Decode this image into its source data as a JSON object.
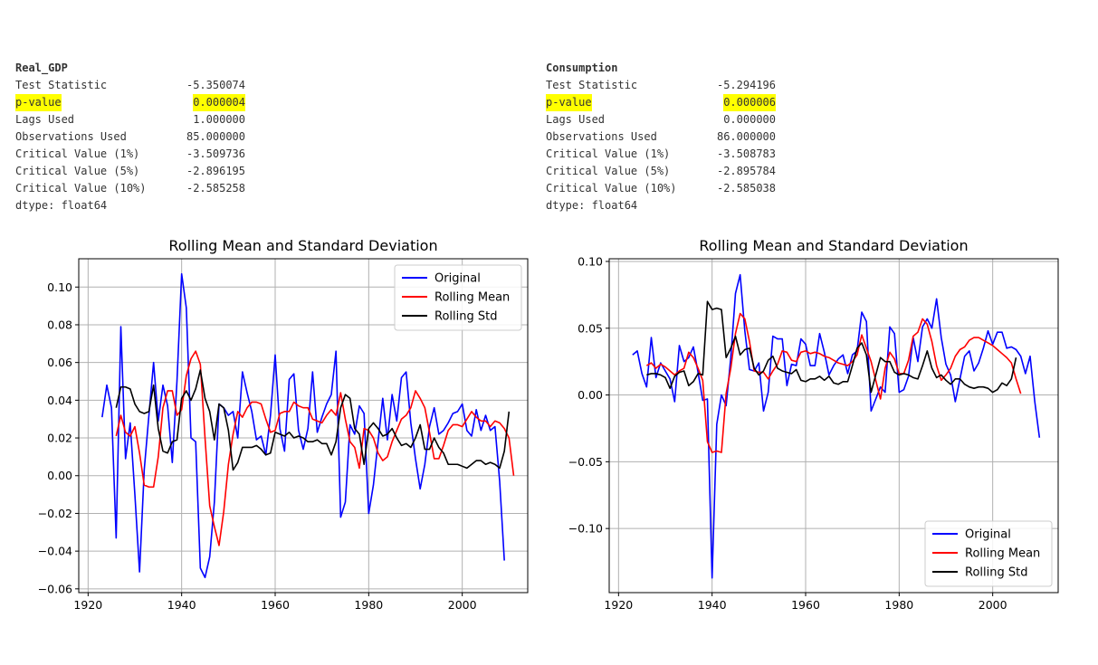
{
  "stats": [
    {
      "title": "Real_GDP",
      "rows": [
        {
          "label": "Test Statistic",
          "value": "-5.350074",
          "highlight": false
        },
        {
          "label": "p-value",
          "value": "0.000004",
          "highlight": true
        },
        {
          "label": "Lags Used",
          "value": "1.000000",
          "highlight": false
        },
        {
          "label": "Observations Used",
          "value": "85.000000",
          "highlight": false
        },
        {
          "label": "Critical Value (1%)",
          "value": "-3.509736",
          "highlight": false
        },
        {
          "label": "Critical Value (5%)",
          "value": "-2.896195",
          "highlight": false
        },
        {
          "label": "Critical Value (10%)",
          "value": "-2.585258",
          "highlight": false
        }
      ],
      "dtype": "dtype: float64"
    },
    {
      "title": "Consumption",
      "rows": [
        {
          "label": "Test Statistic",
          "value": "-5.294196",
          "highlight": false
        },
        {
          "label": "p-value",
          "value": "0.000006",
          "highlight": true
        },
        {
          "label": "Lags Used",
          "value": "0.000000",
          "highlight": false
        },
        {
          "label": "Observations Used",
          "value": "86.000000",
          "highlight": false
        },
        {
          "label": "Critical Value (1%)",
          "value": "-3.508783",
          "highlight": false
        },
        {
          "label": "Critical Value (5%)",
          "value": "-2.895784",
          "highlight": false
        },
        {
          "label": "Critical Value (10%)",
          "value": "-2.585038",
          "highlight": false
        }
      ],
      "dtype": "dtype: float64"
    }
  ],
  "chart_data": [
    {
      "type": "line",
      "title": "Rolling Mean and Standard Deviation",
      "xlim": [
        1918,
        2014
      ],
      "ylim": [
        -0.062,
        0.115
      ],
      "xticks": [
        1920,
        1940,
        1960,
        1980,
        2000
      ],
      "yticks": [
        -0.06,
        -0.04,
        -0.02,
        0.0,
        0.02,
        0.04,
        0.06,
        0.08,
        0.1
      ],
      "ytick_labels": [
        "−0.06",
        "−0.04",
        "−0.02",
        "0.00",
        "0.02",
        "0.04",
        "0.06",
        "0.08",
        "0.10"
      ],
      "grid": true,
      "legend_position": "top-right",
      "series": [
        {
          "name": "Original",
          "color": "#0000ff",
          "x_start": 1923,
          "values": [
            0.031,
            0.048,
            0.036,
            -0.033,
            0.079,
            0.009,
            0.028,
            -0.01,
            -0.051,
            0.003,
            0.032,
            0.06,
            0.029,
            0.048,
            0.037,
            0.007,
            0.05,
            0.107,
            0.089,
            0.02,
            0.018,
            -0.049,
            -0.054,
            -0.043,
            -0.014,
            0.038,
            0.036,
            0.032,
            0.034,
            0.02,
            0.055,
            0.044,
            0.034,
            0.019,
            0.021,
            0.011,
            0.032,
            0.064,
            0.025,
            0.013,
            0.051,
            0.054,
            0.024,
            0.014,
            0.025,
            0.055,
            0.023,
            0.031,
            0.038,
            0.043,
            0.066,
            -0.022,
            -0.014,
            0.027,
            0.022,
            0.037,
            0.033,
            -0.02,
            -0.005,
            0.018,
            0.041,
            0.019,
            0.043,
            0.029,
            0.052,
            0.055,
            0.028,
            0.009,
            -0.007,
            0.006,
            0.026,
            0.036,
            0.022,
            0.024,
            0.028,
            0.033,
            0.034,
            0.038,
            0.024,
            0.021,
            0.035,
            0.024,
            0.032,
            0.024,
            0.026,
            -0.003,
            -0.045
          ]
        },
        {
          "name": "Rolling Mean",
          "color": "#ff0000",
          "x_start": 1926,
          "values": [
            0.021,
            0.032,
            0.023,
            0.021,
            0.026,
            0.012,
            -0.005,
            -0.006,
            -0.006,
            0.01,
            0.036,
            0.045,
            0.045,
            0.032,
            0.035,
            0.053,
            0.062,
            0.066,
            0.059,
            0.02,
            -0.016,
            -0.027,
            -0.037,
            -0.019,
            0.006,
            0.022,
            0.034,
            0.031,
            0.036,
            0.039,
            0.039,
            0.038,
            0.03,
            0.023,
            0.024,
            0.033,
            0.034,
            0.034,
            0.039,
            0.037,
            0.036,
            0.036,
            0.03,
            0.029,
            0.028,
            0.032,
            0.035,
            0.032,
            0.044,
            0.03,
            0.018,
            0.015,
            0.004,
            0.025,
            0.024,
            0.02,
            0.012,
            0.008,
            0.01,
            0.018,
            0.024,
            0.03,
            0.032,
            0.036,
            0.045,
            0.041,
            0.036,
            0.023,
            0.009,
            0.009,
            0.016,
            0.024,
            0.027,
            0.027,
            0.026,
            0.03,
            0.034,
            0.031,
            0.029,
            0.029,
            0.026,
            0.029,
            0.028,
            0.025,
            0.02,
            0.0
          ]
        },
        {
          "name": "Rolling Std",
          "color": "#000000",
          "x_start": 1926,
          "values": [
            0.036,
            0.047,
            0.047,
            0.046,
            0.038,
            0.034,
            0.033,
            0.034,
            0.048,
            0.025,
            0.013,
            0.012,
            0.018,
            0.019,
            0.041,
            0.045,
            0.04,
            0.046,
            0.056,
            0.041,
            0.034,
            0.019,
            0.038,
            0.036,
            0.024,
            0.003,
            0.007,
            0.015,
            0.015,
            0.015,
            0.016,
            0.014,
            0.011,
            0.012,
            0.023,
            0.022,
            0.021,
            0.023,
            0.02,
            0.021,
            0.02,
            0.018,
            0.018,
            0.019,
            0.017,
            0.017,
            0.011,
            0.018,
            0.036,
            0.043,
            0.041,
            0.025,
            0.022,
            0.006,
            0.025,
            0.028,
            0.025,
            0.021,
            0.022,
            0.025,
            0.02,
            0.016,
            0.017,
            0.015,
            0.02,
            0.027,
            0.014,
            0.014,
            0.02,
            0.015,
            0.012,
            0.006,
            0.006,
            0.006,
            0.005,
            0.004,
            0.006,
            0.008,
            0.008,
            0.006,
            0.007,
            0.006,
            0.004,
            0.013,
            0.034
          ]
        }
      ]
    },
    {
      "type": "line",
      "title": "Rolling Mean and Standard Deviation",
      "xlim": [
        1918,
        2014
      ],
      "ylim": [
        -0.148,
        0.102
      ],
      "xticks": [
        1920,
        1940,
        1960,
        1980,
        2000
      ],
      "yticks": [
        -0.1,
        -0.05,
        0.0,
        0.05,
        0.1
      ],
      "ytick_labels": [
        "−0.10",
        "−0.05",
        "0.00",
        "0.05",
        "0.10"
      ],
      "grid": true,
      "legend_position": "bottom-right",
      "series": [
        {
          "name": "Original",
          "color": "#0000ff",
          "x_start": 1923,
          "values": [
            0.03,
            0.033,
            0.016,
            0.006,
            0.043,
            0.013,
            0.024,
            0.018,
            0.012,
            -0.005,
            0.037,
            0.025,
            0.028,
            0.036,
            0.017,
            -0.004,
            -0.003,
            -0.137,
            -0.022,
            0.0,
            -0.008,
            0.028,
            0.076,
            0.09,
            0.048,
            0.019,
            0.018,
            0.024,
            -0.012,
            0.002,
            0.044,
            0.042,
            0.042,
            0.007,
            0.023,
            0.022,
            0.042,
            0.038,
            0.022,
            0.022,
            0.046,
            0.032,
            0.015,
            0.022,
            0.027,
            0.03,
            0.016,
            0.03,
            0.033,
            0.062,
            0.055,
            -0.012,
            -0.003,
            0.006,
            0.002,
            0.051,
            0.046,
            0.002,
            0.004,
            0.014,
            0.043,
            0.025,
            0.051,
            0.057,
            0.05,
            0.072,
            0.043,
            0.023,
            0.015,
            -0.005,
            0.012,
            0.029,
            0.033,
            0.018,
            0.024,
            0.035,
            0.048,
            0.038,
            0.047,
            0.047,
            0.035,
            0.036,
            0.034,
            0.029,
            0.016,
            0.029,
            -0.005,
            -0.032
          ]
        },
        {
          "name": "Rolling Mean",
          "color": "#ff0000",
          "x_start": 1926,
          "values": [
            0.022,
            0.024,
            0.02,
            0.023,
            0.021,
            0.018,
            0.015,
            0.018,
            0.02,
            0.032,
            0.028,
            0.02,
            0.011,
            -0.035,
            -0.043,
            -0.042,
            -0.043,
            0.001,
            0.02,
            0.046,
            0.061,
            0.057,
            0.04,
            0.018,
            0.017,
            0.017,
            0.012,
            0.018,
            0.023,
            0.033,
            0.032,
            0.026,
            0.025,
            0.032,
            0.033,
            0.031,
            0.032,
            0.031,
            0.029,
            0.028,
            0.026,
            0.024,
            0.023,
            0.022,
            0.025,
            0.03,
            0.045,
            0.035,
            0.025,
            0.011,
            -0.003,
            0.02,
            0.032,
            0.027,
            0.016,
            0.016,
            0.026,
            0.044,
            0.047,
            0.057,
            0.053,
            0.04,
            0.022,
            0.011,
            0.015,
            0.02,
            0.029,
            0.034,
            0.036,
            0.041,
            0.043,
            0.043,
            0.041,
            0.039,
            0.037,
            0.034,
            0.031,
            0.028,
            0.024,
            0.012,
            0.001
          ]
        },
        {
          "name": "Rolling Std",
          "color": "#000000",
          "x_start": 1926,
          "values": [
            0.015,
            0.016,
            0.016,
            0.015,
            0.013,
            0.005,
            0.014,
            0.017,
            0.018,
            0.007,
            0.01,
            0.016,
            0.015,
            0.07,
            0.064,
            0.065,
            0.064,
            0.028,
            0.035,
            0.044,
            0.03,
            0.034,
            0.035,
            0.02,
            0.015,
            0.018,
            0.026,
            0.029,
            0.02,
            0.018,
            0.017,
            0.016,
            0.019,
            0.011,
            0.01,
            0.012,
            0.012,
            0.014,
            0.011,
            0.014,
            0.009,
            0.008,
            0.01,
            0.01,
            0.022,
            0.035,
            0.039,
            0.03,
            0.002,
            0.015,
            0.028,
            0.025,
            0.025,
            0.017,
            0.015,
            0.016,
            0.015,
            0.013,
            0.012,
            0.022,
            0.033,
            0.02,
            0.013,
            0.015,
            0.011,
            0.008,
            0.012,
            0.012,
            0.008,
            0.006,
            0.005,
            0.006,
            0.006,
            0.005,
            0.002,
            0.004,
            0.009,
            0.007,
            0.012,
            0.028
          ]
        }
      ]
    }
  ]
}
